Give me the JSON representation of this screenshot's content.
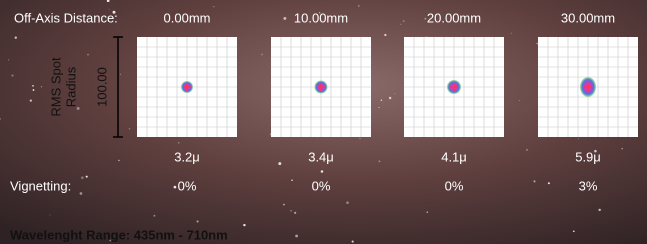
{
  "header": {
    "distance_label": "Off-Axis Distance:",
    "distances": [
      "0.00mm",
      "10.00mm",
      "20.00mm",
      "30.00mm"
    ]
  },
  "scale": {
    "axis_label": [
      "RMS Spot",
      "Radius"
    ],
    "value": "100.00"
  },
  "spots": {
    "rms": [
      "3.2μ",
      "3.4μ",
      "4.1μ",
      "5.9μ"
    ]
  },
  "vignetting": {
    "label": "Vignetting:",
    "values": [
      "0%",
      "0%",
      "0%",
      "3%"
    ]
  },
  "footer": {
    "wavelength": "Wavelenght Range: 435nm - 710nm"
  }
}
